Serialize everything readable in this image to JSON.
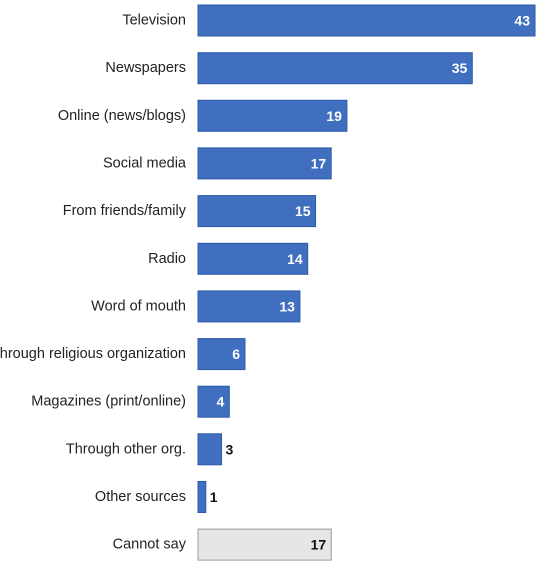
{
  "chart_data": {
    "type": "bar",
    "orientation": "horizontal",
    "categories": [
      "Television",
      "Newspapers",
      "Online (news/blogs)",
      "Social media",
      "From friends/family",
      "Radio",
      "Word of mouth",
      "Through religious organization",
      "Magazines (print/online)",
      "Through other org.",
      "Other sources",
      "Cannot say"
    ],
    "values": [
      43,
      35,
      19,
      17,
      15,
      14,
      13,
      6,
      4,
      3,
      1,
      17
    ],
    "highlight": "Cannot say",
    "xlim": [
      0,
      43
    ],
    "grid": false,
    "colors": {
      "bar": "#3f6fbe",
      "bar_edge": "#2b5aa8",
      "muted_bar": "#e6e6e6",
      "muted_edge": "#9a9a9a",
      "label_on_bar": "#ffffff",
      "label_outside": "#111111"
    }
  }
}
